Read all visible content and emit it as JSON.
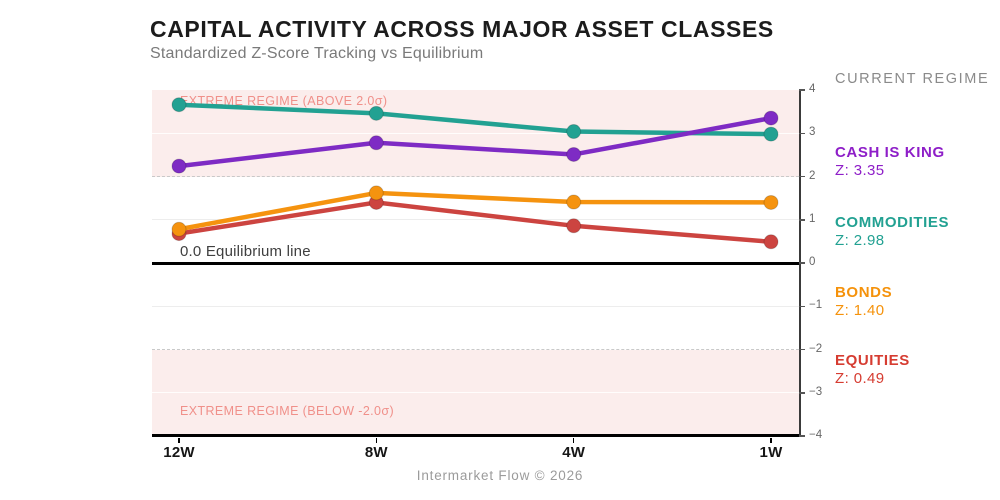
{
  "header": {
    "title": "CAPITAL ACTIVITY ACROSS MAJOR ASSET CLASSES",
    "subtitle": "Standardized Z-Score Tracking vs Equilibrium"
  },
  "panel": {
    "heading": "CURRENT REGIME",
    "entries": [
      {
        "name": "CASH IS KING",
        "z_label": "Z: 3.35",
        "color": "#8e1ec8"
      },
      {
        "name": "COMMODITIES",
        "z_label": "Z: 2.98",
        "color": "#22a192"
      },
      {
        "name": "BONDS",
        "z_label": "Z: 1.40",
        "color": "#f5920b"
      },
      {
        "name": "EQUITIES",
        "z_label": "Z: 0.49",
        "color": "#d63c31"
      }
    ]
  },
  "footer": {
    "credit": "Intermarket Flow © 2026"
  },
  "chart_data": {
    "type": "line",
    "x": [
      "12W",
      "8W",
      "4W",
      "1W"
    ],
    "series": [
      {
        "name": "EQUITIES",
        "color": "#cc4440",
        "values": [
          0.68,
          1.4,
          0.86,
          0.49
        ]
      },
      {
        "name": "BONDS",
        "color": "#f5930f",
        "values": [
          0.78,
          1.62,
          1.41,
          1.4
        ]
      },
      {
        "name": "COMMODITIES",
        "color": "#22a192",
        "values": [
          3.66,
          3.46,
          3.04,
          2.98
        ]
      },
      {
        "name": "CASH IS KING",
        "color": "#7e2bc4",
        "values": [
          2.24,
          2.78,
          2.51,
          3.35
        ]
      }
    ],
    "ylabel": "",
    "xlabel": "",
    "ylim": [
      -4,
      4
    ],
    "yticks": [
      "4",
      "3",
      "2",
      "1",
      "0",
      "−1",
      "−2",
      "−3",
      "−4"
    ],
    "grid": "horizontal, dashed at ±2, light at ±1 and ±3",
    "legend_position": "right panel",
    "equilibrium": 0,
    "bands": {
      "upper": [
        2,
        4
      ],
      "lower": [
        -4,
        -2
      ],
      "fill": "#fbedec",
      "label_color": "#f0908a",
      "upper_label": "EXTREME REGIME (ABOVE 2.0σ)",
      "lower_label": "EXTREME REGIME (BELOW -2.0σ)"
    },
    "annotations": {
      "equilibrium_label": "0.0 Equilibrium line"
    }
  }
}
